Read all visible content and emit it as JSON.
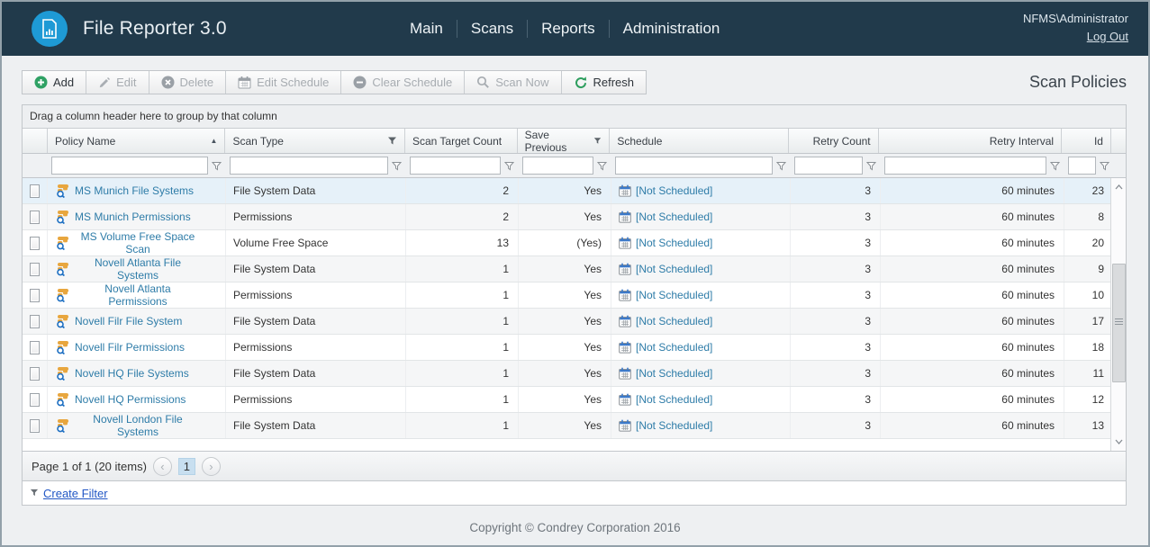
{
  "header": {
    "app_title": "File Reporter 3.0",
    "nav": [
      {
        "label": "Main"
      },
      {
        "label": "Scans"
      },
      {
        "label": "Reports"
      },
      {
        "label": "Administration"
      }
    ],
    "user": "NFMS\\Administrator",
    "logout_label": "Log Out"
  },
  "toolbar": {
    "buttons": [
      {
        "label": "Add",
        "icon": "add-circle-icon",
        "enabled": true
      },
      {
        "label": "Edit",
        "icon": "pencil-icon",
        "enabled": false
      },
      {
        "label": "Delete",
        "icon": "delete-circle-icon",
        "enabled": false
      },
      {
        "label": "Edit Schedule",
        "icon": "calendar-icon",
        "enabled": false
      },
      {
        "label": "Clear Schedule",
        "icon": "minus-circle-icon",
        "enabled": false
      },
      {
        "label": "Scan Now",
        "icon": "magnifier-icon",
        "enabled": false
      },
      {
        "label": "Refresh",
        "icon": "refresh-icon",
        "enabled": true
      }
    ],
    "page_title": "Scan Policies"
  },
  "grid": {
    "group_bar_text": "Drag a column header here to group by that column",
    "columns": [
      {
        "label": "Policy Name",
        "sort": "asc"
      },
      {
        "label": "Scan Type",
        "filter_icon": true
      },
      {
        "label": "Scan Target Count"
      },
      {
        "label": "Save Previous",
        "filter_icon": true
      },
      {
        "label": "Schedule"
      },
      {
        "label": "Retry Count"
      },
      {
        "label": "Retry Interval"
      },
      {
        "label": "Id"
      }
    ],
    "row_icon": "scan-policy-icon",
    "schedule_icon": "calendar-icon",
    "rows": [
      {
        "policy_name": "MS Munich File Systems",
        "scan_type": "File System Data",
        "scan_target_count": "2",
        "save_previous": "Yes",
        "schedule": "[Not Scheduled]",
        "retry_count": "3",
        "retry_interval": "60 minutes",
        "id": "23"
      },
      {
        "policy_name": "MS Munich Permissions",
        "scan_type": "Permissions",
        "scan_target_count": "2",
        "save_previous": "Yes",
        "schedule": "[Not Scheduled]",
        "retry_count": "3",
        "retry_interval": "60 minutes",
        "id": "8"
      },
      {
        "policy_name": "MS Volume Free Space Scan",
        "scan_type": "Volume Free Space",
        "scan_target_count": "13",
        "save_previous": "(Yes)",
        "schedule": "[Not Scheduled]",
        "retry_count": "3",
        "retry_interval": "60 minutes",
        "id": "20"
      },
      {
        "policy_name": "Novell Atlanta File Systems",
        "scan_type": "File System Data",
        "scan_target_count": "1",
        "save_previous": "Yes",
        "schedule": "[Not Scheduled]",
        "retry_count": "3",
        "retry_interval": "60 minutes",
        "id": "9"
      },
      {
        "policy_name": "Novell Atlanta Permissions",
        "scan_type": "Permissions",
        "scan_target_count": "1",
        "save_previous": "Yes",
        "schedule": "[Not Scheduled]",
        "retry_count": "3",
        "retry_interval": "60 minutes",
        "id": "10"
      },
      {
        "policy_name": "Novell Filr File System",
        "scan_type": "File System Data",
        "scan_target_count": "1",
        "save_previous": "Yes",
        "schedule": "[Not Scheduled]",
        "retry_count": "3",
        "retry_interval": "60 minutes",
        "id": "17"
      },
      {
        "policy_name": "Novell Filr Permissions",
        "scan_type": "Permissions",
        "scan_target_count": "1",
        "save_previous": "Yes",
        "schedule": "[Not Scheduled]",
        "retry_count": "3",
        "retry_interval": "60 minutes",
        "id": "18"
      },
      {
        "policy_name": "Novell HQ File Systems",
        "scan_type": "File System Data",
        "scan_target_count": "1",
        "save_previous": "Yes",
        "schedule": "[Not Scheduled]",
        "retry_count": "3",
        "retry_interval": "60 minutes",
        "id": "11"
      },
      {
        "policy_name": "Novell HQ Permissions",
        "scan_type": "Permissions",
        "scan_target_count": "1",
        "save_previous": "Yes",
        "schedule": "[Not Scheduled]",
        "retry_count": "3",
        "retry_interval": "60 minutes",
        "id": "12"
      },
      {
        "policy_name": "Novell London File Systems",
        "scan_type": "File System Data",
        "scan_target_count": "1",
        "save_previous": "Yes",
        "schedule": "[Not Scheduled]",
        "retry_count": "3",
        "retry_interval": "60 minutes",
        "id": "13"
      }
    ],
    "pager": {
      "text": "Page 1 of 1 (20 items)",
      "prev_glyph": "‹",
      "next_glyph": "›",
      "current_page": "1"
    },
    "create_filter_label": "Create Filter"
  },
  "footer": {
    "copyright": "Copyright © Condrey Corporation 2016"
  },
  "colors": {
    "header_bg": "#213a4b",
    "logo_accent": "#1e9ad5",
    "grid_link": "#2e7ca8",
    "create_filter_link": "#2257c5",
    "selected_row_bg": "#e6f1f9",
    "alt_row_bg": "#f5f6f7",
    "enabled_icon_green": "#2fa164"
  }
}
